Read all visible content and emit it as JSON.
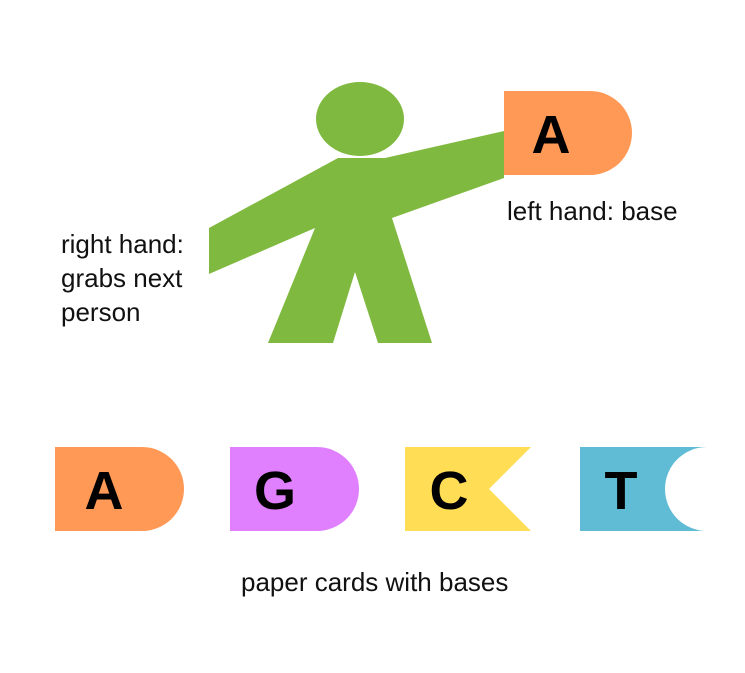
{
  "figure": {
    "held_card": {
      "letter": "A",
      "color": "#FF9955"
    },
    "labels": {
      "left_hand": "left hand: base",
      "right_hand": [
        "right hand:",
        "grabs next",
        "person"
      ],
      "cards_caption": "paper cards with bases"
    },
    "person_color": "#80B940",
    "cards": [
      {
        "letter": "A",
        "shape": "round-tab",
        "color": "#FF9955"
      },
      {
        "letter": "G",
        "shape": "round-tab",
        "color": "#E080FF"
      },
      {
        "letter": "C",
        "shape": "notch-tab",
        "color": "#FFDD55"
      },
      {
        "letter": "T",
        "shape": "round-notch",
        "color": "#60BCD5"
      }
    ]
  }
}
